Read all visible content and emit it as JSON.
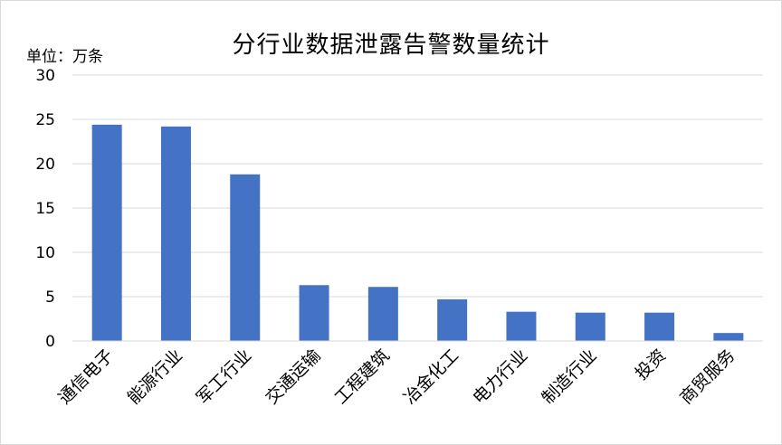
{
  "chart_data": {
    "type": "bar",
    "title": "分行业数据泄露告警数量统计",
    "unit_label": "单位：万条",
    "xlabel": "",
    "ylabel": "",
    "categories": [
      "通信电子",
      "能源行业",
      "军工行业",
      "交通运输",
      "工程建筑",
      "冶金化工",
      "电力行业",
      "制造行业",
      "投资",
      "商贸服务"
    ],
    "values": [
      24.4,
      24.2,
      18.8,
      6.3,
      6.1,
      4.7,
      3.3,
      3.2,
      3.2,
      0.9
    ],
    "ylim": [
      0,
      30
    ],
    "yticks": [
      "0",
      "5",
      "10",
      "15",
      "20",
      "25",
      "30"
    ],
    "grid": true,
    "legend": "none",
    "colors": {
      "bar": "#4472c4",
      "grid": "#d9d9d9",
      "axis": "#d9d9d9",
      "text": "#000000"
    }
  }
}
